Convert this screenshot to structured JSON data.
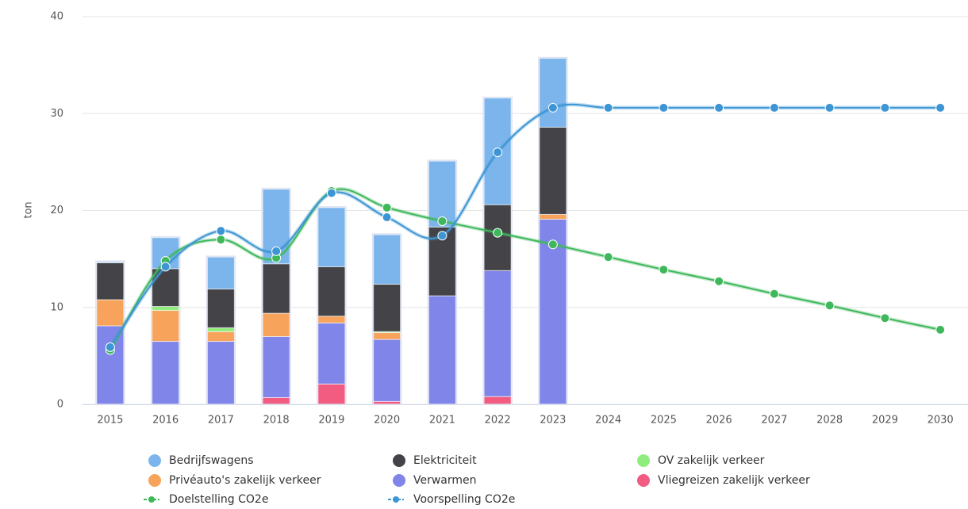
{
  "chart_data": {
    "type": "bar",
    "stacked": true,
    "y_label": "ton",
    "categories": [
      "2015",
      "2016",
      "2017",
      "2018",
      "2019",
      "2020",
      "2021",
      "2022",
      "2023",
      "2024",
      "2025",
      "2026",
      "2027",
      "2028",
      "2029",
      "2030"
    ],
    "ylim": [
      0,
      40
    ],
    "yticks": [
      0,
      10,
      20,
      30,
      40
    ],
    "grid": true,
    "series": [
      {
        "name": "Bedrijfswagens",
        "color": "#7cb5ec",
        "values": [
          0.1,
          3.2,
          3.3,
          7.7,
          6.1,
          5.1,
          6.8,
          11.0,
          7.1,
          null,
          null,
          null,
          null,
          null,
          null,
          null
        ]
      },
      {
        "name": "Elektriciteit",
        "color": "#434348",
        "values": [
          3.8,
          3.9,
          4.0,
          5.1,
          5.1,
          4.9,
          7.1,
          6.8,
          9.0,
          null,
          null,
          null,
          null,
          null,
          null,
          null
        ]
      },
      {
        "name": "OV zakelijk verkeer",
        "color": "#90ed7d",
        "values": [
          0,
          0.4,
          0.4,
          0,
          0,
          0.1,
          0,
          0,
          0,
          null,
          null,
          null,
          null,
          null,
          null,
          null
        ]
      },
      {
        "name": "Privéauto's zakelijk verkeer",
        "color": "#f7a35c",
        "values": [
          2.7,
          3.2,
          1.0,
          2.4,
          0.7,
          0.7,
          0,
          0,
          0.5,
          null,
          null,
          null,
          null,
          null,
          null,
          null
        ]
      },
      {
        "name": "Verwarmen",
        "color": "#8085e9",
        "values": [
          8.1,
          6.5,
          6.5,
          6.3,
          6.3,
          6.4,
          11.2,
          13.0,
          19.1,
          null,
          null,
          null,
          null,
          null,
          null,
          null
        ]
      },
      {
        "name": "Vliegreizen zakelijk verkeer",
        "color": "#f15c80",
        "values": [
          0,
          0,
          0,
          0.7,
          2.1,
          0.3,
          0,
          0.8,
          0,
          null,
          null,
          null,
          null,
          null,
          null,
          null
        ]
      },
      {
        "name": "Doelstelling CO2e",
        "type": "line",
        "color": "#3fb85c",
        "values": [
          5.6,
          14.8,
          17.0,
          15.1,
          22.0,
          20.3,
          18.9,
          17.7,
          16.5,
          15.2,
          13.9,
          12.7,
          11.4,
          10.2,
          8.9,
          7.7
        ]
      },
      {
        "name": "Voorspelling CO2e",
        "type": "line",
        "color": "#3d96d3",
        "values": [
          5.9,
          14.2,
          17.9,
          15.8,
          21.8,
          19.3,
          17.4,
          26.0,
          30.6,
          30.6,
          30.6,
          30.6,
          30.6,
          30.6,
          30.6,
          30.6
        ]
      }
    ]
  }
}
